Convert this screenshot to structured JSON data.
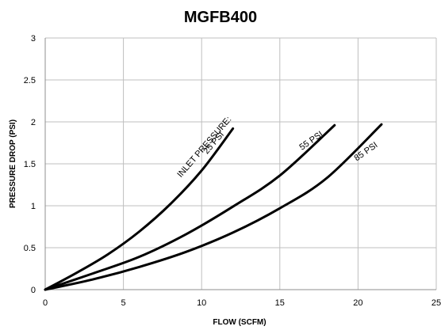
{
  "chart_data": {
    "type": "line",
    "title": "MGFB400",
    "xlabel": "FLOW (SCFM)",
    "ylabel": "PRESSURE DROP (PSI)",
    "xlim": [
      0,
      25
    ],
    "ylim": [
      0,
      3
    ],
    "x_ticks": [
      0,
      5,
      10,
      15,
      20,
      25
    ],
    "y_ticks": [
      0,
      0.5,
      1,
      1.5,
      2,
      2.5,
      3
    ],
    "x_tick_labels": [
      "0",
      "5",
      "10",
      "15",
      "20",
      "25"
    ],
    "y_tick_labels": [
      "0",
      "0.5",
      "1",
      "1.5",
      "2",
      "2.5",
      "3"
    ],
    "grid": true,
    "series": [
      {
        "name": "25 PSI",
        "x": [
          0,
          2,
          4,
          6,
          8,
          10,
          12
        ],
        "y": [
          0,
          0.2,
          0.42,
          0.69,
          1.02,
          1.42,
          1.92
        ]
      },
      {
        "name": "55 PSI",
        "x": [
          0,
          3,
          6,
          9,
          12,
          15,
          18.5
        ],
        "y": [
          0,
          0.19,
          0.39,
          0.66,
          0.99,
          1.36,
          1.96
        ]
      },
      {
        "name": "85 PSI",
        "x": [
          0,
          3,
          6,
          9,
          12,
          15,
          18,
          21.5
        ],
        "y": [
          0,
          0.12,
          0.27,
          0.45,
          0.68,
          0.97,
          1.33,
          1.97
        ]
      }
    ],
    "annotations": [
      {
        "text": "INLET PRESSURE:",
        "x": 10.3,
        "y": 1.68
      },
      {
        "text": "25 PSI",
        "x": 10.9,
        "y": 1.73
      },
      {
        "text": "55 PSI",
        "x": 17.1,
        "y": 1.75
      },
      {
        "text": "85 PSI",
        "x": 20.6,
        "y": 1.62
      }
    ]
  }
}
